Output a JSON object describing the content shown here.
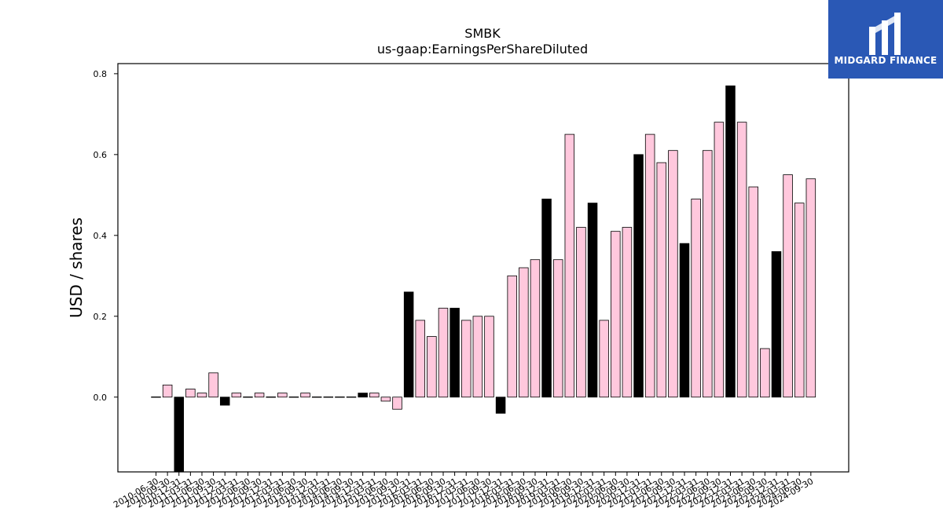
{
  "brand": {
    "name": "MIDGARD FINANCE",
    "logo_icon": "midgard-m-logo-icon",
    "color": "#2a58b5"
  },
  "chart_data": {
    "type": "bar",
    "title": "SMBK",
    "subtitle": "us-gaap:EarningsPerShareDiluted",
    "xlabel": "",
    "ylabel": "USD / shares",
    "ylim": [
      -0.185,
      0.825
    ],
    "yticks": [
      0.0,
      0.2,
      0.4,
      0.6,
      0.8
    ],
    "grid": false,
    "colors": {
      "annual": "#000000",
      "quarterly": "#ffc8dd",
      "edge": "#000000"
    },
    "categories": [
      "2010-06-30",
      "2010-09-30",
      "2010-12-31",
      "2011-03-31",
      "2011-06-30",
      "2011-09-30",
      "2011-12-31",
      "2012-03-31",
      "2012-06-30",
      "2012-09-30",
      "2012-12-31",
      "2013-03-31",
      "2013-06-30",
      "2013-09-30",
      "2013-12-31",
      "2014-03-31",
      "2014-06-30",
      "2014-09-30",
      "2014-12-31",
      "2015-03-31",
      "2015-06-30",
      "2015-09-30",
      "2015-12-31",
      "2016-03-31",
      "2016-06-30",
      "2016-09-30",
      "2016-12-31",
      "2017-03-31",
      "2017-06-30",
      "2017-09-30",
      "2017-12-31",
      "2018-03-31",
      "2018-06-30",
      "2018-09-30",
      "2018-12-31",
      "2019-03-31",
      "2019-06-30",
      "2019-09-30",
      "2019-12-31",
      "2020-03-31",
      "2020-06-30",
      "2020-09-30",
      "2020-12-31",
      "2021-03-31",
      "2021-06-30",
      "2021-09-30",
      "2021-12-31",
      "2022-03-31",
      "2022-06-30",
      "2022-09-30",
      "2022-12-31",
      "2023-03-31",
      "2023-06-30",
      "2023-09-30",
      "2023-12-31",
      "2024-03-31",
      "2024-06-30",
      "2024-09-30"
    ],
    "values": [
      0.0,
      0.03,
      -0.19,
      0.02,
      0.01,
      0.06,
      -0.02,
      0.01,
      0.0,
      0.01,
      0.0,
      0.01,
      0.0,
      0.01,
      0.0,
      0.0,
      0.0,
      0.0,
      0.01,
      0.01,
      -0.01,
      -0.03,
      0.26,
      0.19,
      0.15,
      0.22,
      0.22,
      0.19,
      0.2,
      0.2,
      -0.04,
      0.3,
      0.32,
      0.34,
      0.49,
      0.34,
      0.65,
      0.42,
      0.48,
      0.19,
      0.41,
      0.42,
      0.6,
      0.65,
      0.58,
      0.61,
      0.38,
      0.49,
      0.61,
      0.68,
      0.77,
      0.68,
      0.52,
      0.12,
      0.36,
      0.55,
      0.48,
      0.54
    ],
    "period": [
      "Q",
      "Q",
      "FY",
      "Q",
      "Q",
      "Q",
      "FY",
      "Q",
      "Q",
      "Q",
      "FY",
      "Q",
      "Q",
      "Q",
      "FY",
      "Q",
      "Q",
      "Q",
      "FY",
      "Q",
      "Q",
      "Q",
      "FY",
      "Q",
      "Q",
      "Q",
      "FY",
      "Q",
      "Q",
      "Q",
      "FY",
      "Q",
      "Q",
      "Q",
      "FY",
      "Q",
      "Q",
      "Q",
      "FY",
      "Q",
      "Q",
      "Q",
      "FY",
      "Q",
      "Q",
      "Q",
      "FY",
      "Q",
      "Q",
      "Q",
      "FY",
      "Q",
      "Q",
      "Q",
      "FY",
      "Q",
      "Q",
      "Q"
    ]
  }
}
